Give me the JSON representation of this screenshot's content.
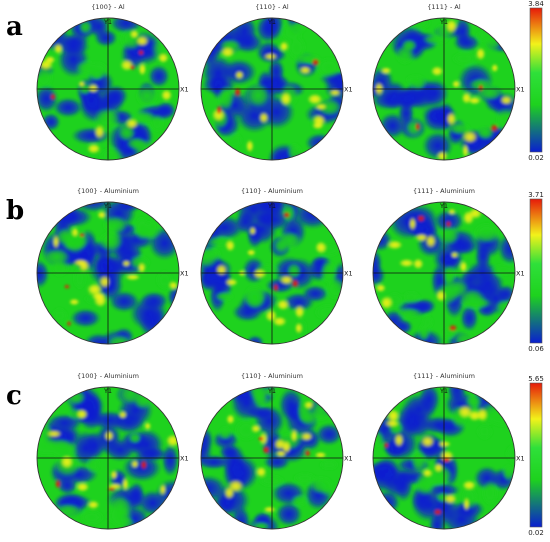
{
  "figure": {
    "colors": {
      "low": "#0a1fd0",
      "mid_low": "#1ed21e",
      "mid": "#2fe03a",
      "mid_high": "#f2f21a",
      "high": "#e61a0a",
      "outline": "#333333",
      "axis": "#111111"
    },
    "axis_labels": {
      "vertical": "Y1",
      "horizontal": "X1"
    },
    "rows": [
      {
        "letter": "a",
        "colorbar": {
          "max": "3.84",
          "min": "0.02"
        },
        "figures": [
          {
            "title": "{100} - Al"
          },
          {
            "title": "{110} - Al"
          },
          {
            "title": "{111} - Al"
          }
        ]
      },
      {
        "letter": "b",
        "colorbar": {
          "max": "3.71",
          "min": "0.06"
        },
        "figures": [
          {
            "title": "{100} - Aluminium"
          },
          {
            "title": "{110} - Aluminium"
          },
          {
            "title": "{111} - Aluminium"
          }
        ]
      },
      {
        "letter": "c",
        "colorbar": {
          "max": "5.65",
          "min": "0.02"
        },
        "figures": [
          {
            "title": "{100} - Aluminium"
          },
          {
            "title": "{110} - Aluminium"
          },
          {
            "title": "{111} - Aluminium"
          }
        ]
      }
    ]
  }
}
